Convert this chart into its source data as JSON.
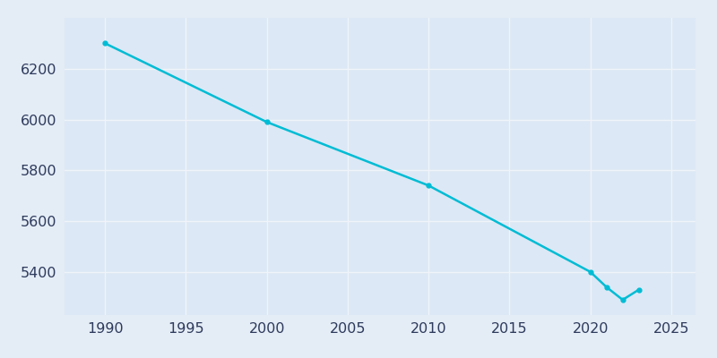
{
  "years": [
    1990,
    2000,
    2010,
    2020,
    2021,
    2022,
    2023
  ],
  "population": [
    6300,
    5990,
    5740,
    5400,
    5340,
    5290,
    5330
  ],
  "line_color": "#00bcd4",
  "marker": "o",
  "marker_size": 3.5,
  "line_width": 1.8,
  "bg_color": "#e4ecf5",
  "plot_bg_color": "#dce8f5",
  "grid_color": "#f0f4fa",
  "xlabel": "",
  "ylabel": "",
  "xlim": [
    1987.5,
    2026.5
  ],
  "ylim": [
    5230,
    6400
  ],
  "yticks": [
    5400,
    5600,
    5800,
    6000,
    6200
  ],
  "xticks": [
    1990,
    1995,
    2000,
    2005,
    2010,
    2015,
    2020,
    2025
  ],
  "tick_label_color": "#2d3a5c",
  "tick_fontsize": 11.5
}
